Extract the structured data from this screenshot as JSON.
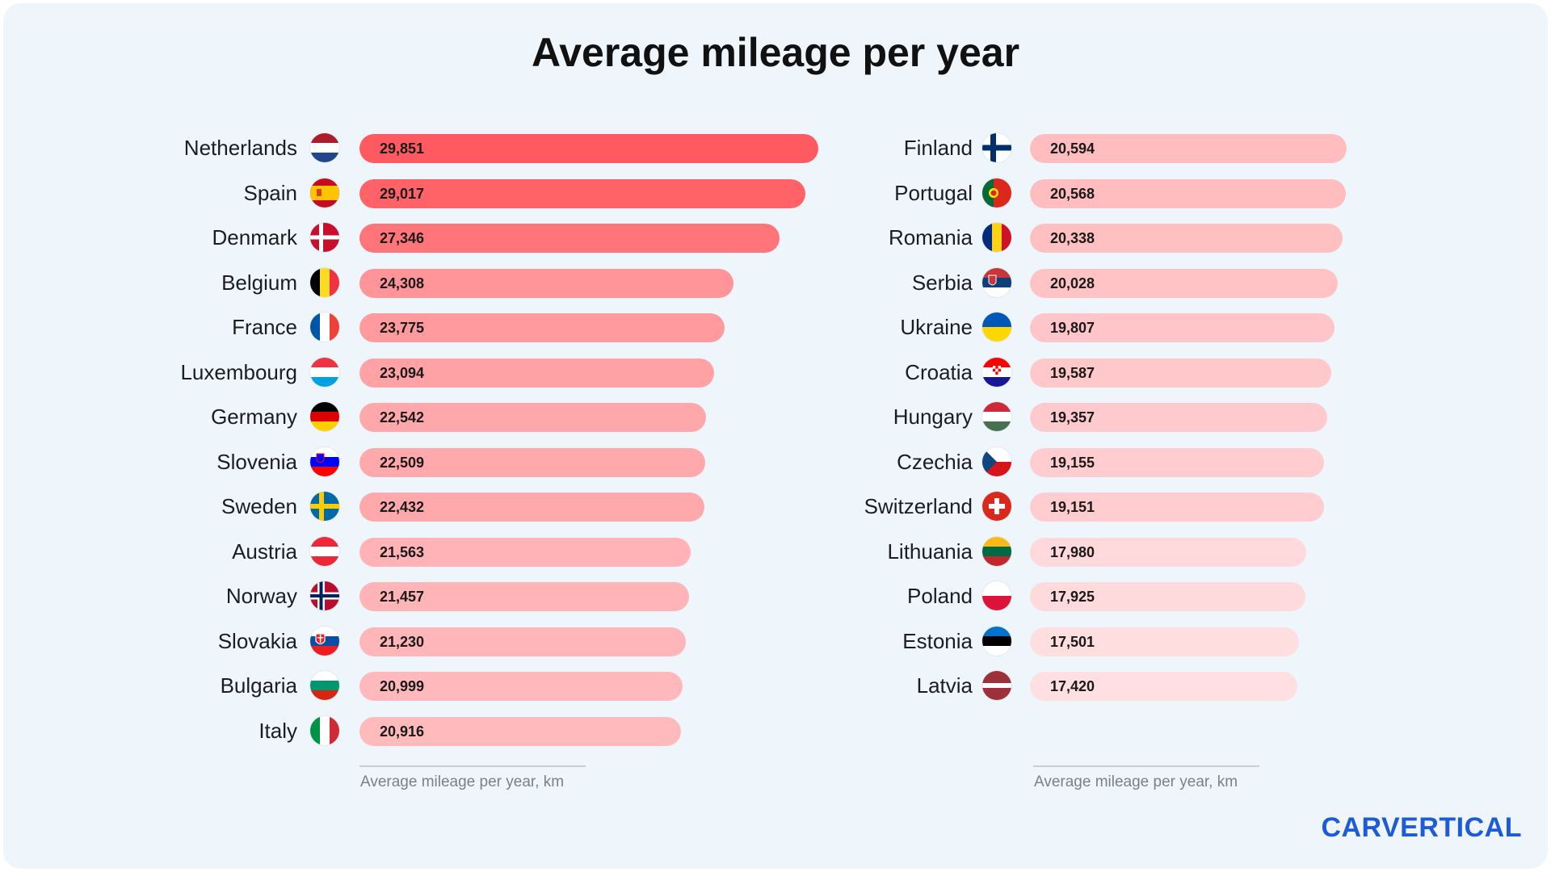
{
  "chart_data": {
    "type": "bar",
    "orientation": "horizontal",
    "title": "Average mileage per year",
    "xlabel": "Average mileage per year, km",
    "xlim": [
      0,
      29851
    ],
    "panels": [
      {
        "categories": [
          "Netherlands",
          "Spain",
          "Denmark",
          "Belgium",
          "France",
          "Luxembourg",
          "Germany",
          "Slovenia",
          "Sweden",
          "Austria",
          "Norway",
          "Slovakia",
          "Bulgaria",
          "Italy"
        ],
        "values": [
          29851,
          29017,
          27346,
          24308,
          23775,
          23094,
          22542,
          22509,
          22432,
          21563,
          21457,
          21230,
          20999,
          20916
        ],
        "labels": [
          "29,851",
          "29,017",
          "27,346",
          "24,308",
          "23,775",
          "23,094",
          "22,542",
          "22,509",
          "22,432",
          "21,563",
          "21,457",
          "21,230",
          "20,999",
          "20,916"
        ],
        "flags": [
          "nl-flag-icon",
          "es-flag-icon",
          "dk-flag-icon",
          "be-flag-icon",
          "fr-flag-icon",
          "lu-flag-icon",
          "de-flag-icon",
          "si-flag-icon",
          "se-flag-icon",
          "at-flag-icon",
          "no-flag-icon",
          "sk-flag-icon",
          "bg-flag-icon",
          "it-flag-icon"
        ]
      },
      {
        "categories": [
          "Finland",
          "Portugal",
          "Romania",
          "Serbia",
          "Ukraine",
          "Croatia",
          "Hungary",
          "Czechia",
          "Switzerland",
          "Lithuania",
          "Poland",
          "Estonia",
          "Latvia"
        ],
        "values": [
          20594,
          20568,
          20338,
          20028,
          19807,
          19587,
          19357,
          19155,
          19151,
          17980,
          17925,
          17501,
          17420
        ],
        "labels": [
          "20,594",
          "20,568",
          "20,338",
          "20,028",
          "19,807",
          "19,587",
          "19,357",
          "19,155",
          "19,151",
          "17,980",
          "17,925",
          "17,501",
          "17,420"
        ],
        "flags": [
          "fi-flag-icon",
          "pt-flag-icon",
          "ro-flag-icon",
          "rs-flag-icon",
          "ua-flag-icon",
          "hr-flag-icon",
          "hu-flag-icon",
          "cz-flag-icon",
          "ch-flag-icon",
          "lt-flag-icon",
          "pl-flag-icon",
          "ee-flag-icon",
          "lv-flag-icon"
        ]
      }
    ]
  },
  "brand": "CARVERTICAL",
  "colors": {
    "bar_max": "#ff5a5f",
    "bar_min": "#ffdfe1",
    "background": "#eef6fc",
    "brand": "#1e5bd8"
  }
}
